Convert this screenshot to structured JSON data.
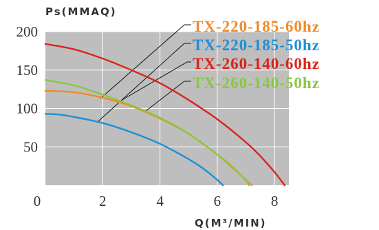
{
  "chart_data": {
    "type": "line",
    "xlabel": "Q(M³/MIN)",
    "ylabel": "Ps(MMAQ)",
    "xlim": [
      0,
      8.5
    ],
    "ylim": [
      0,
      200
    ],
    "xticks": [
      0,
      2,
      4,
      6,
      8
    ],
    "yticks": [
      50,
      100,
      150,
      200
    ],
    "grid": true,
    "legend_position": "top-right",
    "series": [
      {
        "name": "TX-220-185-60hz",
        "color": "#f08a2a",
        "x": [
          0,
          1,
          2,
          3,
          4,
          5,
          6,
          6.5,
          7.0,
          7.2
        ],
        "y": [
          123,
          121,
          114,
          103,
          87,
          67,
          40,
          24,
          7,
          0
        ]
      },
      {
        "name": "TX-220-185-50hz",
        "color": "#1e8fd6",
        "x": [
          0,
          0.5,
          1,
          2,
          3,
          4,
          5,
          5.5,
          6.0,
          6.2
        ],
        "y": [
          93,
          92,
          89,
          81,
          69,
          54,
          34,
          22,
          7,
          0
        ]
      },
      {
        "name": "TX-260-140-60hz",
        "color": "#d9251c",
        "x": [
          0,
          1,
          2,
          3,
          4,
          5,
          6,
          7,
          7.5,
          8.0,
          8.35
        ],
        "y": [
          184,
          177,
          165,
          150,
          133,
          111,
          86,
          56,
          38,
          17,
          0
        ]
      },
      {
        "name": "TX-260-140-50hz",
        "color": "#8cc63f",
        "x": [
          0,
          1,
          2,
          3,
          4,
          5,
          6,
          6.5,
          7.0,
          7.1
        ],
        "y": [
          137,
          130,
          118,
          104,
          88,
          67,
          40,
          25,
          6,
          0
        ]
      }
    ]
  }
}
